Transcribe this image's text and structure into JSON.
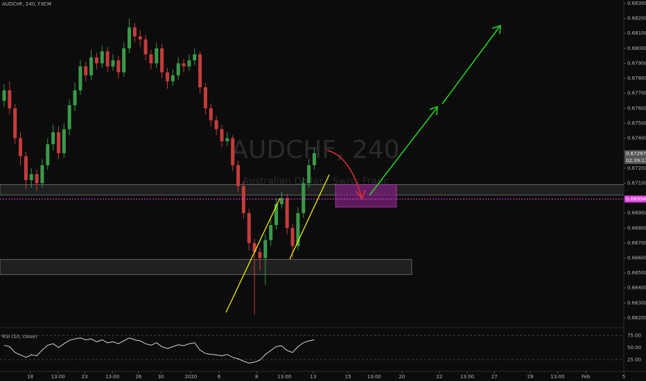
{
  "chart_data": [
    {
      "type": "candlestick",
      "title": "AUDCHF, 240, FXCM",
      "watermark": "AUDCHF, 240",
      "watermark_subtitle": "Australian Dollar / Swiss Franc",
      "up_color": "#3a9a4a",
      "down_color": "#c43c3c",
      "open": [
        0.6765,
        0.6772,
        0.676,
        0.674,
        0.6728,
        0.6712,
        0.6716,
        0.671,
        0.6722,
        0.6736,
        0.6744,
        0.673,
        0.6746,
        0.6762,
        0.6772,
        0.6788,
        0.6782,
        0.6794,
        0.679,
        0.6798,
        0.6788,
        0.6792,
        0.6784,
        0.68,
        0.6814,
        0.6808,
        0.6806,
        0.6796,
        0.679,
        0.68,
        0.6784,
        0.6778,
        0.6782,
        0.679,
        0.6788,
        0.6792,
        0.6796,
        0.6774,
        0.676,
        0.6752,
        0.6746,
        0.6738,
        0.674,
        0.6722,
        0.6708,
        0.669,
        0.667,
        0.6664,
        0.666,
        0.6672,
        0.6682,
        0.6696,
        0.67,
        0.668,
        0.6668,
        0.669,
        0.671,
        0.6722
      ],
      "high": [
        0.6776,
        0.6778,
        0.6763,
        0.6744,
        0.6731,
        0.672,
        0.6719,
        0.6726,
        0.674,
        0.6749,
        0.6748,
        0.675,
        0.6766,
        0.6777,
        0.6792,
        0.6791,
        0.6799,
        0.6797,
        0.6802,
        0.6801,
        0.6796,
        0.6795,
        0.6804,
        0.682,
        0.6817,
        0.6812,
        0.6809,
        0.6799,
        0.6804,
        0.6803,
        0.6787,
        0.6786,
        0.6794,
        0.6793,
        0.6796,
        0.68,
        0.6798,
        0.6777,
        0.6763,
        0.6755,
        0.6749,
        0.6744,
        0.6742,
        0.6725,
        0.6711,
        0.6693,
        0.6673,
        0.6667,
        0.6676,
        0.6686,
        0.67,
        0.6704,
        0.6703,
        0.6683,
        0.6694,
        0.6714,
        0.6726,
        0.6733
      ],
      "low": [
        0.6761,
        0.6756,
        0.6736,
        0.6722,
        0.6706,
        0.6707,
        0.6705,
        0.6707,
        0.6719,
        0.6732,
        0.6726,
        0.6727,
        0.6742,
        0.6758,
        0.6769,
        0.6778,
        0.6779,
        0.6786,
        0.6787,
        0.6784,
        0.6785,
        0.678,
        0.6781,
        0.6797,
        0.6804,
        0.6801,
        0.6792,
        0.6786,
        0.6787,
        0.678,
        0.6773,
        0.6775,
        0.6779,
        0.6784,
        0.6785,
        0.6789,
        0.677,
        0.6756,
        0.6748,
        0.6742,
        0.6734,
        0.6735,
        0.6718,
        0.6704,
        0.6686,
        0.6665,
        0.6622,
        0.6652,
        0.6642,
        0.6668,
        0.6679,
        0.6693,
        0.6676,
        0.666,
        0.6665,
        0.6687,
        0.6707,
        0.6719
      ],
      "close": [
        0.6772,
        0.676,
        0.674,
        0.6728,
        0.6712,
        0.6716,
        0.671,
        0.6722,
        0.6736,
        0.6744,
        0.673,
        0.6746,
        0.6762,
        0.6772,
        0.6788,
        0.6782,
        0.6794,
        0.679,
        0.6798,
        0.6788,
        0.6792,
        0.6784,
        0.68,
        0.6814,
        0.6808,
        0.6806,
        0.6796,
        0.679,
        0.68,
        0.6784,
        0.6778,
        0.6782,
        0.679,
        0.6788,
        0.6792,
        0.6796,
        0.6774,
        0.676,
        0.6752,
        0.6746,
        0.6738,
        0.674,
        0.6722,
        0.6708,
        0.669,
        0.667,
        0.6664,
        0.666,
        0.6672,
        0.6682,
        0.6696,
        0.67,
        0.668,
        0.6668,
        0.669,
        0.671,
        0.6722,
        0.673
      ],
      "xlim": [
        -0.76,
        113.88
      ],
      "xticks": [
        {
          "value": 4.8,
          "label": "18"
        },
        {
          "value": 9.9,
          "label": "13:00"
        },
        {
          "value": 14.8,
          "label": "23"
        },
        {
          "value": 19.9,
          "label": "13:00"
        },
        {
          "value": 24.7,
          "label": "26"
        },
        {
          "value": 28.8,
          "label": "30"
        },
        {
          "value": 34.3,
          "label": "2020"
        },
        {
          "value": 39.5,
          "label": "6"
        },
        {
          "value": 46.4,
          "label": "8"
        },
        {
          "value": 51.5,
          "label": "13:00"
        },
        {
          "value": 56.8,
          "label": "13"
        },
        {
          "value": 63.2,
          "label": "15"
        },
        {
          "value": 68,
          "label": "13:00"
        },
        {
          "value": 73.1,
          "label": "20"
        },
        {
          "value": 80,
          "label": "22"
        },
        {
          "value": 85.1,
          "label": "13:00"
        },
        {
          "value": 90.1,
          "label": "27"
        },
        {
          "value": 96.7,
          "label": "29"
        },
        {
          "value": 101.7,
          "label": "13:00"
        },
        {
          "value": 106.9,
          "label": "Feb"
        },
        {
          "value": 113.9,
          "label": "5"
        }
      ],
      "ylim": [
        0.66149,
        0.68323
      ],
      "yticks": [
        {
          "value": 0.683,
          "label": "0.68300"
        },
        {
          "value": 0.682,
          "label": "0.68200"
        },
        {
          "value": 0.681,
          "label": "0.68100"
        },
        {
          "value": 0.68,
          "label": "0.68000"
        },
        {
          "value": 0.679,
          "label": "0.67900"
        },
        {
          "value": 0.678,
          "label": "0.67800"
        },
        {
          "value": 0.677,
          "label": "0.67700"
        },
        {
          "value": 0.676,
          "label": "0.67600"
        },
        {
          "value": 0.675,
          "label": "0.67500"
        },
        {
          "value": 0.674,
          "label": "0.67400"
        },
        {
          "value": 0.673,
          "label": "0.67300"
        },
        {
          "value": 0.672,
          "label": "0.67200"
        },
        {
          "value": 0.671,
          "label": "0.67100"
        },
        {
          "value": 0.67,
          "label": "0.67000"
        },
        {
          "value": 0.669,
          "label": "0.66900"
        },
        {
          "value": 0.668,
          "label": "0.66800"
        },
        {
          "value": 0.667,
          "label": "0.66700"
        },
        {
          "value": 0.666,
          "label": "0.66600"
        },
        {
          "value": 0.665,
          "label": "0.66500"
        },
        {
          "value": 0.664,
          "label": "0.66400"
        },
        {
          "value": 0.663,
          "label": "0.66300"
        },
        {
          "value": 0.662,
          "label": "0.66200"
        }
      ],
      "zones": [
        {
          "top": 0.6709,
          "bottom": 0.6702,
          "color": "#3a3a3a"
        },
        {
          "top": 0.6659,
          "bottom": 0.6649,
          "color": "#3a3a3a"
        },
        {
          "top": 0.6709,
          "bottom": 0.6694,
          "color": "#7a1f7a"
        }
      ],
      "level": {
        "value": 0.66994,
        "label": "0.66994",
        "color": "#e040e0"
      },
      "last_price": {
        "value": 0.67297,
        "label": "0.67297",
        "countdown": "02:39:13"
      }
    },
    {
      "type": "line",
      "title": "RSI (10, close)",
      "color": "#d8d8d8",
      "values": [
        55,
        52,
        40,
        35,
        30,
        35,
        33,
        45,
        55,
        58,
        50,
        58,
        65,
        68,
        70,
        66,
        68,
        62,
        66,
        60,
        62,
        58,
        64,
        70,
        66,
        64,
        58,
        55,
        60,
        52,
        48,
        52,
        56,
        54,
        58,
        60,
        45,
        38,
        36,
        35,
        33,
        36,
        30,
        27,
        22,
        18,
        20,
        24,
        36,
        44,
        52,
        54,
        44,
        40,
        52,
        60,
        64,
        66
      ],
      "ylim": [
        4,
        84
      ],
      "yticks": [
        {
          "value": 75,
          "label": "75.00"
        },
        {
          "value": 50,
          "label": "50.00"
        },
        {
          "value": 25,
          "label": "25.00"
        }
      ]
    }
  ]
}
